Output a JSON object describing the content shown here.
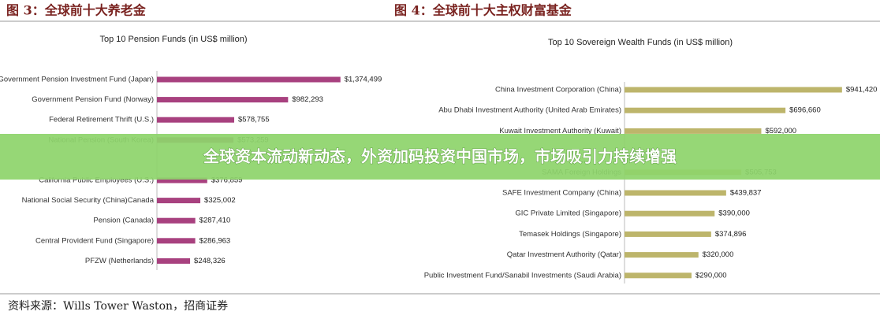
{
  "chart_data": [
    {
      "type": "bar",
      "orientation": "horizontal",
      "figure_label": "图 3：全球前十大养老金",
      "title": "Top 10 Pension Funds (in US$ million)",
      "color": "#a8417f",
      "categories": [
        "Government Pension Investment Fund (Japan)",
        "Government Pension Fund (Norway)",
        "Federal Retirement Thrift (U.S.)",
        "National Pension (South Korea)",
        null,
        "California Public Employees (U.S.)",
        "National Social Security (China)Canada",
        "Pension (Canada)",
        "Central Provident Fund (Singapore)",
        "PFZW (Netherlands)"
      ],
      "values": [
        1374499,
        982293,
        578755,
        573259,
        null,
        376859,
        325002,
        287410,
        286963,
        248326
      ],
      "value_labels": [
        "$1,374,499",
        "$982,293",
        "$578,755",
        "$573,259",
        null,
        "$376,859",
        "$325,002",
        "$287,410",
        "$286,963",
        "$248,326"
      ],
      "xlim": [
        0,
        1500000
      ]
    },
    {
      "type": "bar",
      "orientation": "horizontal",
      "figure_label": "图 4：全球前十大主权财富基金",
      "title": "Top 10 Sovereign Wealth Funds (in US$ million)",
      "color": "#bdb56b",
      "categories": [
        "China Investment Corporation (China)",
        "Abu Dhabi Investment Authority (United Arab Emirates)",
        "Kuwait Investment Authority (Kuwait)",
        null,
        "SAMA Foreign Holdings",
        "SAFE Investment Company (China)",
        "GIC Private Limited (Singapore)",
        "Temasek Holdings (Singapore)",
        "Qatar Investment Authority (Qatar)",
        "Public Investment Fund/Sanabil Investments (Saudi Arabia)"
      ],
      "values": [
        941420,
        696660,
        592000,
        null,
        505753,
        439837,
        390000,
        374896,
        320000,
        290000
      ],
      "value_labels": [
        "$941,420",
        "$696,660",
        "$592,000",
        null,
        "$505,753",
        "$439,837",
        "$390,000",
        "$374,896",
        "$320,000",
        "$290,000"
      ],
      "xlim": [
        0,
        1000000
      ]
    }
  ],
  "banner": "全球资本流动新动态，外资加码投资中国市场，市场吸引力持续增强",
  "source": "资料来源：Wills Tower Waston，招商证券"
}
